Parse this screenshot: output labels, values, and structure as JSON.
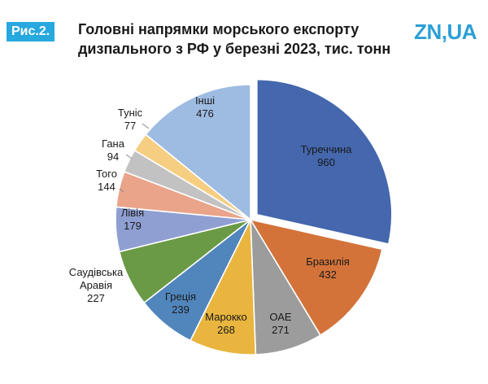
{
  "header": {
    "figure_label": "Рис.2.",
    "logo": "ZN,UA"
  },
  "chart_data": {
    "type": "pie",
    "title": "Головні напрямки морського експорту дизпального з РФ у березні 2023, тис. тонн",
    "slices": [
      {
        "label": "Туреччина",
        "value": 960,
        "color": "#4467ad",
        "exploded": true
      },
      {
        "label": "Бразилія",
        "value": 432,
        "color": "#d3733a"
      },
      {
        "label": "ОАЕ",
        "value": 271,
        "color": "#9c9c9c"
      },
      {
        "label": "Марокко",
        "value": 268,
        "color": "#e9b53e"
      },
      {
        "label": "Греція",
        "value": 239,
        "color": "#5186bd"
      },
      {
        "label": [
          "Саудівська",
          "Аравія"
        ],
        "value": 227,
        "color": "#6a9a46"
      },
      {
        "label": "Лівія",
        "value": 179,
        "color": "#8f9fd2"
      },
      {
        "label": "Того",
        "value": 144,
        "color": "#e9a48a"
      },
      {
        "label": "Гана",
        "value": 94,
        "color": "#c2c2c2"
      },
      {
        "label": "Туніс",
        "value": 77,
        "color": "#f6ce82"
      },
      {
        "label": "Інші",
        "value": 476,
        "color": "#9ebce2"
      }
    ]
  }
}
